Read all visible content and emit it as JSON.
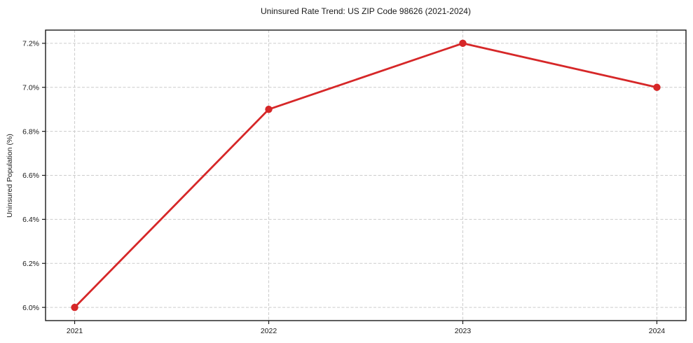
{
  "chart_data": {
    "type": "line",
    "title": "Uninsured Rate Trend: US ZIP Code 98626 (2021-2024)",
    "ylabel": "Uninsured Population (%)",
    "x": [
      2021,
      2022,
      2023,
      2024
    ],
    "values": [
      6.0,
      6.9,
      7.2,
      7.0
    ],
    "xlim": [
      2020.85,
      2024.15
    ],
    "ylim": [
      5.94,
      7.26
    ],
    "xticks": [
      {
        "value": 2021,
        "label": "2021"
      },
      {
        "value": 2022,
        "label": "2022"
      },
      {
        "value": 2023,
        "label": "2023"
      },
      {
        "value": 2024,
        "label": "2024"
      }
    ],
    "yticks": [
      {
        "value": 6.0,
        "label": "6.0%"
      },
      {
        "value": 6.2,
        "label": "6.2%"
      },
      {
        "value": 6.4,
        "label": "6.4%"
      },
      {
        "value": 6.6,
        "label": "6.6%"
      },
      {
        "value": 6.8,
        "label": "6.8%"
      },
      {
        "value": 7.0,
        "label": "7.0%"
      },
      {
        "value": 7.2,
        "label": "7.2%"
      }
    ],
    "grid": true,
    "grid_style": "dashed",
    "legend": "none",
    "line_color": "#d62728",
    "marker": "circle",
    "marker_radius": 5.2,
    "background_color": "#ffffff"
  }
}
